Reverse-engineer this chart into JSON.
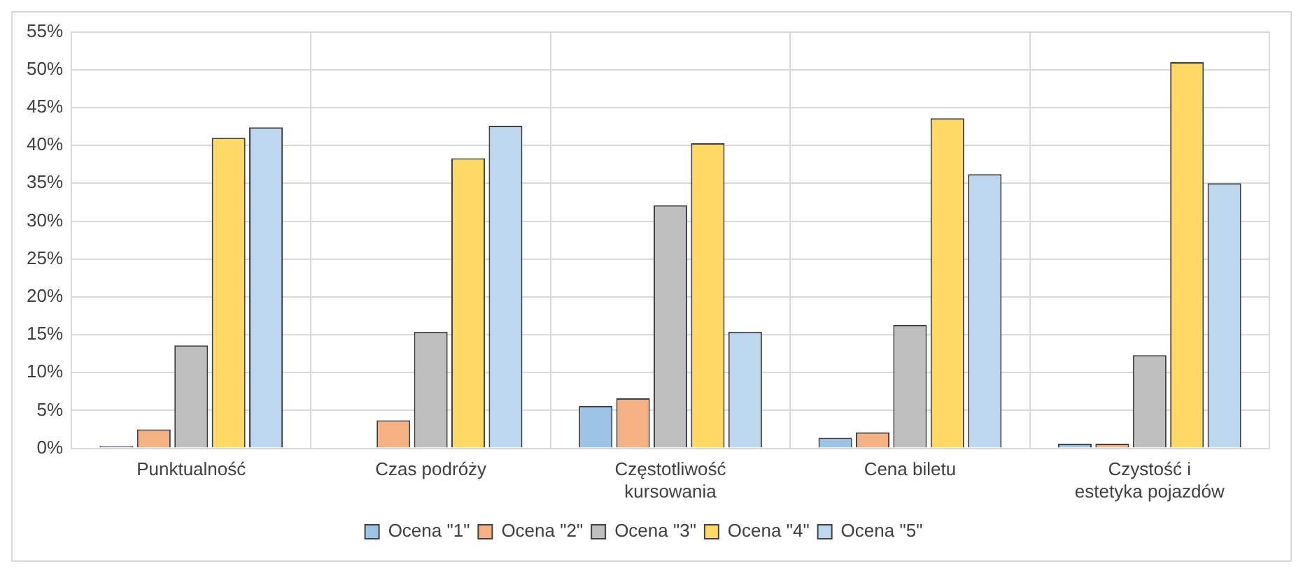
{
  "chart_data": {
    "type": "bar",
    "categories": [
      "Punktualność",
      "Czas podróży",
      "Częstotliwość kursowania",
      "Cena biletu",
      "Czystość i estetyka pojazdów"
    ],
    "series": [
      {
        "name": "Ocena \"1\"",
        "color": "#9dc3e6",
        "values": [
          0.3,
          0,
          5.6,
          1.4,
          0.6
        ]
      },
      {
        "name": "Ocena \"2\"",
        "color": "#f4b183",
        "values": [
          2.5,
          3.7,
          6.6,
          2.1,
          0.6
        ]
      },
      {
        "name": "Ocena \"3\"",
        "color": "#bfbfbf",
        "values": [
          13.6,
          15.4,
          32.1,
          16.3,
          12.3
        ]
      },
      {
        "name": "Ocena \"4\"",
        "color": "#ffd966",
        "values": [
          41,
          38.3,
          40.3,
          43.6,
          51
        ]
      },
      {
        "name": "Ocena \"5\"",
        "color": "#bdd7ee",
        "values": [
          42.4,
          42.6,
          15.4,
          36.2,
          35
        ]
      }
    ],
    "ylim": [
      0,
      55
    ],
    "yticks": [
      {
        "value": 0,
        "label": "0%"
      },
      {
        "value": 5,
        "label": "5%"
      },
      {
        "value": 10,
        "label": "10%"
      },
      {
        "value": 15,
        "label": "15%"
      },
      {
        "value": 20,
        "label": "20%"
      },
      {
        "value": 25,
        "label": "25%"
      },
      {
        "value": 30,
        "label": "30%"
      },
      {
        "value": 35,
        "label": "35%"
      },
      {
        "value": 40,
        "label": "40%"
      },
      {
        "value": 45,
        "label": "45%"
      },
      {
        "value": 50,
        "label": "50%"
      },
      {
        "value": 55,
        "label": "55%"
      }
    ],
    "grid": true,
    "legend": "bottom"
  }
}
